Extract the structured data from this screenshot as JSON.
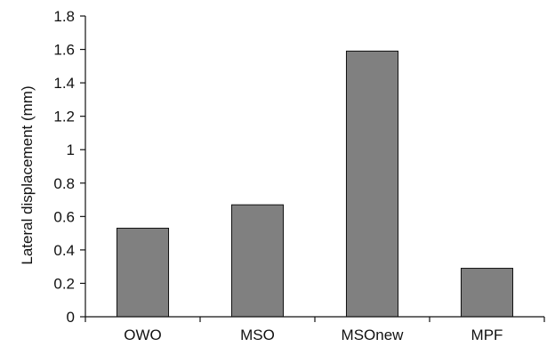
{
  "chart_data": {
    "type": "bar",
    "title": "",
    "xlabel": "",
    "ylabel": "Lateral displacement (mm)",
    "categories": [
      "OWO",
      "MSO",
      "MSOnew",
      "MPF"
    ],
    "values": [
      0.53,
      0.67,
      1.59,
      0.29
    ],
    "ylim": [
      0,
      1.8
    ],
    "yticks": [
      0,
      0.2,
      0.4,
      0.6,
      0.8,
      1,
      1.2,
      1.4,
      1.6,
      1.8
    ],
    "grid": false,
    "legend": "none",
    "bar_color": "#808080",
    "bar_edge_color": "#111111"
  }
}
